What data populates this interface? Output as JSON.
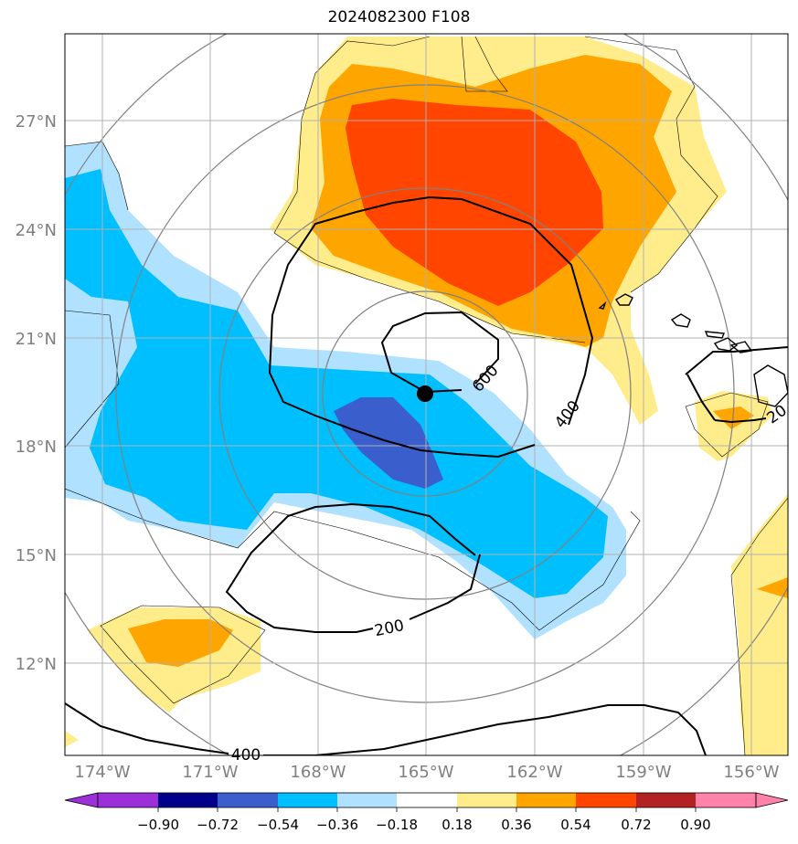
{
  "title": "2024082300 F108",
  "map": {
    "lon_labels": [
      "174°W",
      "171°W",
      "168°W",
      "165°W",
      "162°W",
      "159°W",
      "156°W"
    ],
    "lat_labels": [
      "27°N",
      "24°N",
      "21°N",
      "18°N",
      "15°N",
      "12°N"
    ],
    "extent": {
      "lon": [
        -175,
        -155
      ],
      "lat": [
        10,
        29.5
      ]
    },
    "gridlines": true,
    "storm_center": {
      "lon": -165,
      "lat": 19.4
    },
    "range_rings": 4
  },
  "contours": {
    "color": "#000000",
    "labels": [
      "600",
      "400",
      "200",
      "400",
      "20"
    ]
  },
  "colorbar": {
    "ticks": [
      "−0.90",
      "−0.72",
      "−0.54",
      "−0.36",
      "−0.18",
      "0.18",
      "0.36",
      "0.54",
      "0.72",
      "0.90"
    ],
    "colors": [
      "#9b30d9",
      "#00008b",
      "#3a5fcd",
      "#00bfff",
      "#b0e2ff",
      "#ffffff",
      "#ffec8b",
      "#ffa500",
      "#ff4500",
      "#b22222",
      "#ff82ab"
    ]
  }
}
